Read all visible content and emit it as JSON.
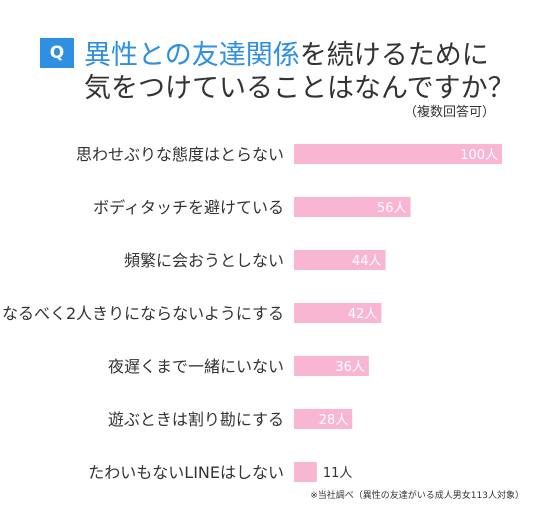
{
  "header": {
    "badge": "Q",
    "title_highlight": "異性との友達関係",
    "title_line1_rest": "を続けるために",
    "title_line2": "気をつけていることはなんですか？",
    "note": "（複数回答可）"
  },
  "footnote": "※当社調べ（異性の友達がいる成人男女113人対象）",
  "colors": {
    "bar": "#f9b6d3",
    "accent": "#2f8fe0",
    "text": "#333333",
    "value_text": "#ffffff"
  },
  "chart_data": {
    "type": "bar",
    "orientation": "horizontal",
    "categories": [
      "思わせぶりな態度はとらない",
      "ボディタッチを避けている",
      "頻繁に会おうとしない",
      "なるべく2人きりにならないようにする",
      "夜遅くまで一緒にいない",
      "遊ぶときは割り勘にする",
      "たわいもないLINEはしない"
    ],
    "values": [
      100,
      56,
      44,
      42,
      36,
      28,
      11
    ],
    "value_labels": [
      "100人",
      "56人",
      "44人",
      "42人",
      "36人",
      "28人",
      "11人"
    ],
    "xlim": [
      0,
      100
    ]
  }
}
